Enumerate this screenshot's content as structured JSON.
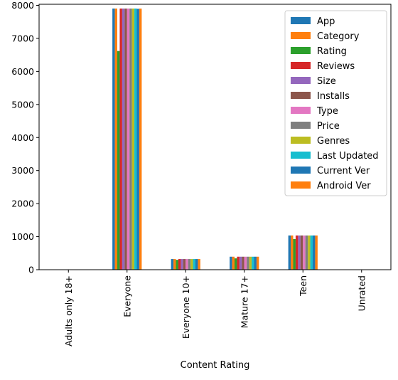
{
  "chart_data": {
    "type": "bar",
    "title": "",
    "xlabel": "Content Rating",
    "ylabel": "",
    "ylim": [
      0,
      8000
    ],
    "yticks": [
      0,
      1000,
      2000,
      3000,
      4000,
      5000,
      6000,
      7000,
      8000
    ],
    "grid": false,
    "legend_position": "top-right",
    "categories": [
      "Adults only 18+",
      "Everyone",
      "Everyone 10+",
      "Mature 17+",
      "Teen",
      "Unrated"
    ],
    "series": [
      {
        "name": "App",
        "color": "#1f77b4",
        "values": [
          3,
          7903,
          322,
          393,
          1036,
          1
        ]
      },
      {
        "name": "Category",
        "color": "#ff7f0e",
        "values": [
          3,
          7903,
          322,
          393,
          1036,
          1
        ]
      },
      {
        "name": "Rating",
        "color": "#2ca02c",
        "values": [
          3,
          6618,
          298,
          343,
          926,
          0
        ]
      },
      {
        "name": "Reviews",
        "color": "#d62728",
        "values": [
          3,
          7903,
          322,
          393,
          1036,
          1
        ]
      },
      {
        "name": "Size",
        "color": "#9467bd",
        "values": [
          3,
          7903,
          322,
          393,
          1036,
          1
        ]
      },
      {
        "name": "Installs",
        "color": "#8c564b",
        "values": [
          3,
          7903,
          322,
          393,
          1036,
          1
        ]
      },
      {
        "name": "Type",
        "color": "#e377c2",
        "values": [
          3,
          7903,
          322,
          393,
          1036,
          1
        ]
      },
      {
        "name": "Price",
        "color": "#7f7f7f",
        "values": [
          3,
          7903,
          322,
          393,
          1036,
          1
        ]
      },
      {
        "name": "Genres",
        "color": "#bcbd22",
        "values": [
          3,
          7903,
          322,
          393,
          1036,
          1
        ]
      },
      {
        "name": "Last Updated",
        "color": "#17becf",
        "values": [
          3,
          7903,
          322,
          393,
          1036,
          1
        ]
      },
      {
        "name": "Current Ver",
        "color": "#1f77b4",
        "values": [
          3,
          7895,
          322,
          393,
          1036,
          1
        ]
      },
      {
        "name": "Android Ver",
        "color": "#ff7f0e",
        "values": [
          3,
          7901,
          322,
          393,
          1036,
          1
        ]
      }
    ]
  }
}
